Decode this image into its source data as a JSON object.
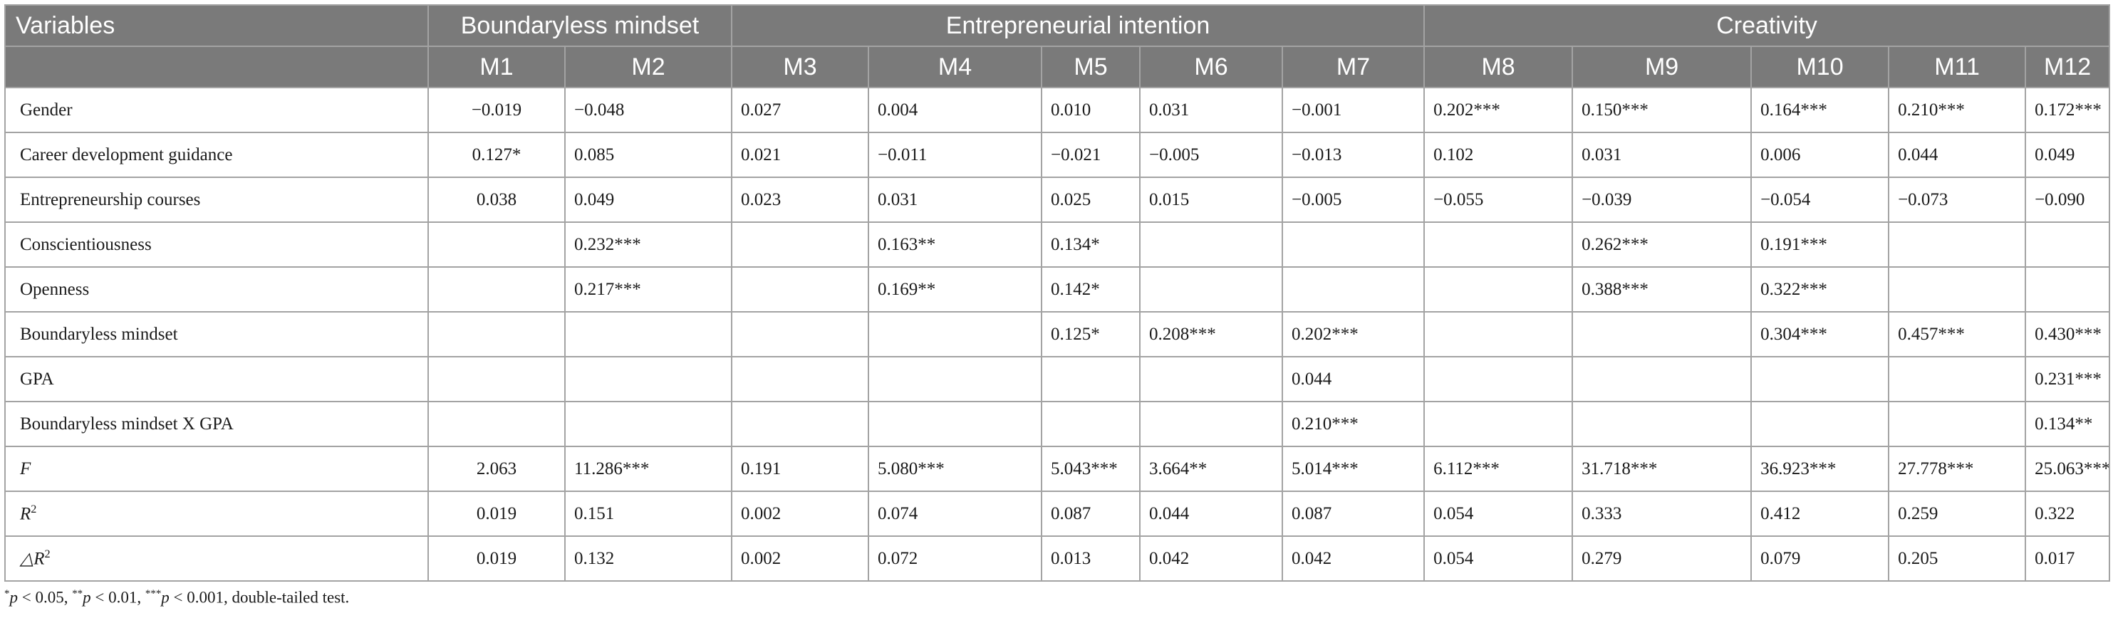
{
  "table": {
    "header_variables": "Variables",
    "groups": [
      {
        "label": "Boundaryless mindset"
      },
      {
        "label": "Entrepreneurial intention"
      },
      {
        "label": "Creativity"
      }
    ],
    "models": [
      "M1",
      "M2",
      "M3",
      "M4",
      "M5",
      "M6",
      "M7",
      "M8",
      "M9",
      "M10",
      "M11",
      "M12"
    ],
    "rows": [
      {
        "label": "Gender",
        "values": [
          "−0.019",
          "−0.048",
          "0.027",
          "0.004",
          "0.010",
          "0.031",
          "−0.001",
          "0.202***",
          "0.150***",
          "0.164***",
          "0.210***",
          "0.172***"
        ]
      },
      {
        "label": "Career development guidance",
        "values": [
          "0.127*",
          "0.085",
          "0.021",
          "−0.011",
          "−0.021",
          "−0.005",
          "−0.013",
          "0.102",
          "0.031",
          "0.006",
          "0.044",
          "0.049"
        ]
      },
      {
        "label": "Entrepreneurship courses",
        "values": [
          "0.038",
          "0.049",
          "0.023",
          "0.031",
          "0.025",
          "0.015",
          "−0.005",
          "−0.055",
          "−0.039",
          "−0.054",
          "−0.073",
          "−0.090"
        ]
      },
      {
        "label": "Conscientiousness",
        "values": [
          "",
          "0.232***",
          "",
          "0.163**",
          "0.134*",
          "",
          "",
          "",
          "0.262***",
          "0.191***",
          "",
          ""
        ]
      },
      {
        "label": "Openness",
        "values": [
          "",
          "0.217***",
          "",
          "0.169**",
          "0.142*",
          "",
          "",
          "",
          "0.388***",
          "0.322***",
          "",
          ""
        ]
      },
      {
        "label": "Boundaryless mindset",
        "values": [
          "",
          "",
          "",
          "",
          "0.125*",
          "0.208***",
          "0.202***",
          "",
          "",
          "0.304***",
          "0.457***",
          "0.430***"
        ]
      },
      {
        "label": "GPA",
        "values": [
          "",
          "",
          "",
          "",
          "",
          "",
          "0.044",
          "",
          "",
          "",
          "",
          "0.231***"
        ]
      },
      {
        "label": "Boundaryless mindset X GPA",
        "values": [
          "",
          "",
          "",
          "",
          "",
          "",
          "0.210***",
          "",
          "",
          "",
          "",
          "0.134**"
        ]
      }
    ],
    "stat_rows": [
      {
        "label": "F",
        "values": [
          "2.063",
          "11.286***",
          "0.191",
          "5.080***",
          "5.043***",
          "3.664**",
          "5.014***",
          "6.112***",
          "31.718***",
          "36.923***",
          "27.778***",
          "25.063***"
        ]
      },
      {
        "label_prefix": "R",
        "label_sup": "2",
        "values": [
          "0.019",
          "0.151",
          "0.002",
          "0.074",
          "0.087",
          "0.044",
          "0.087",
          "0.054",
          "0.333",
          "0.412",
          "0.259",
          "0.322"
        ]
      },
      {
        "label_prefix": "△R",
        "label_sup": "2",
        "values": [
          "0.019",
          "0.132",
          "0.002",
          "0.072",
          "0.013",
          "0.042",
          "0.042",
          "0.054",
          "0.279",
          "0.079",
          "0.205",
          "0.017"
        ]
      }
    ]
  },
  "footnote": {
    "sup1": "*",
    "p1": "p",
    "t1": " < 0.05, ",
    "sup2": "**",
    "p2": "p",
    "t2": " < 0.01, ",
    "sup3": "***",
    "p3": "p",
    "t3": " < 0.001, double-tailed test."
  }
}
